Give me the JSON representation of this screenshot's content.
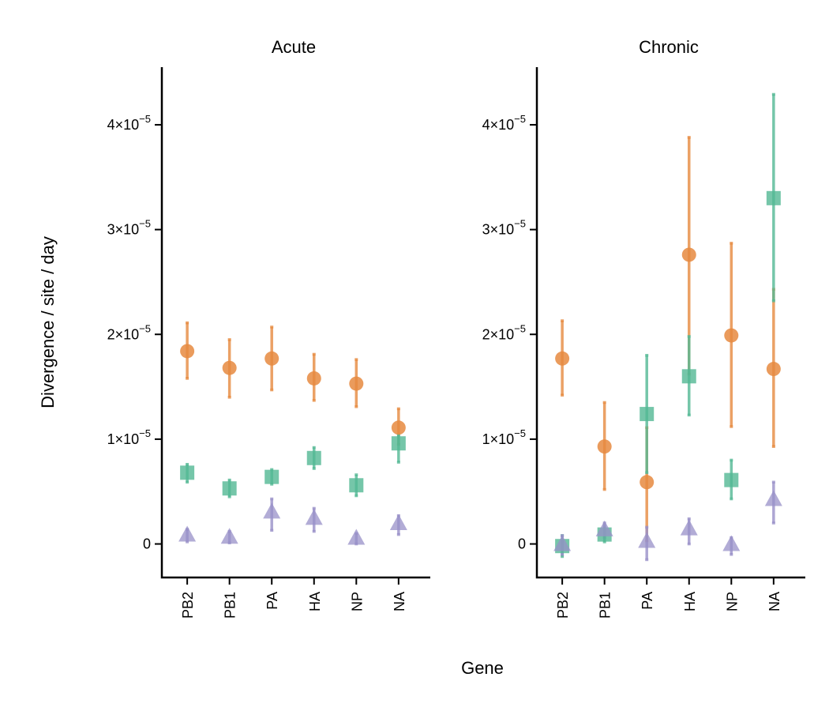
{
  "chart_data": {
    "type": "scatter",
    "xlabel": "Gene",
    "ylabel": "Divergence / site / day",
    "categories": [
      "PB2",
      "PB1",
      "PA",
      "HA",
      "NP",
      "NA"
    ],
    "y_ticks": [
      {
        "value": 0,
        "mant": "0",
        "exp": ""
      },
      {
        "value": 1e-05,
        "mant": "1×10",
        "exp": "−5"
      },
      {
        "value": 2e-05,
        "mant": "2×10",
        "exp": "−5"
      },
      {
        "value": 3e-05,
        "mant": "3×10",
        "exp": "−5"
      },
      {
        "value": 4e-05,
        "mant": "4×10",
        "exp": "−5"
      }
    ],
    "ylim": [
      -3.2e-06,
      4.55e-05
    ],
    "series_styles": [
      {
        "marker": "circle",
        "color": "#e6893f"
      },
      {
        "marker": "square",
        "color": "#52b894"
      },
      {
        "marker": "triangle",
        "color": "#9890c8"
      }
    ],
    "panels": [
      {
        "title": "Acute",
        "series": [
          {
            "marker": "circle",
            "color": "#e6893f",
            "y": [
              1.84e-05,
              1.68e-05,
              1.77e-05,
              1.58e-05,
              1.53e-05,
              1.11e-05
            ],
            "lo": [
              1.58e-05,
              1.4e-05,
              1.47e-05,
              1.37e-05,
              1.31e-05,
              9.5e-06
            ],
            "hi": [
              2.11e-05,
              1.95e-05,
              2.07e-05,
              1.81e-05,
              1.76e-05,
              1.29e-05
            ]
          },
          {
            "marker": "square",
            "color": "#52b894",
            "y": [
              6.8e-06,
              5.3e-06,
              6.4e-06,
              8.2e-06,
              5.6e-06,
              9.6e-06
            ],
            "lo": [
              5.9e-06,
              4.5e-06,
              5.7e-06,
              7.2e-06,
              4.6e-06,
              7.8e-06
            ],
            "hi": [
              7.6e-06,
              6.1e-06,
              7.1e-06,
              9.2e-06,
              6.6e-06,
              1.04e-05
            ]
          },
          {
            "marker": "triangle",
            "color": "#9890c8",
            "y": [
              8e-07,
              6e-07,
              3e-06,
              2.4e-06,
              5e-07,
              1.9e-06
            ],
            "lo": [
              2e-07,
              1e-07,
              1.3e-06,
              1.2e-06,
              0.0,
              9e-07
            ],
            "hi": [
              1.4e-06,
              1.2e-06,
              4.3e-06,
              3.4e-06,
              1e-06,
              2.7e-06
            ]
          }
        ]
      },
      {
        "title": "Chronic",
        "series": [
          {
            "marker": "circle",
            "color": "#e6893f",
            "y": [
              1.77e-05,
              9.3e-06,
              5.9e-06,
              2.76e-05,
              1.99e-05,
              1.67e-05
            ],
            "lo": [
              1.42e-05,
              5.2e-06,
              3e-07,
              1.62e-05,
              1.12e-05,
              9.3e-06
            ],
            "hi": [
              2.13e-05,
              1.35e-05,
              1.11e-05,
              3.88e-05,
              2.87e-05,
              2.43e-05
            ]
          },
          {
            "marker": "square",
            "color": "#52b894",
            "y": [
              -2e-07,
              9e-07,
              1.24e-05,
              1.6e-05,
              6.1e-06,
              3.3e-05
            ],
            "lo": [
              -1.2e-06,
              2e-07,
              6.8e-06,
              1.23e-05,
              4.3e-06,
              2.32e-05
            ],
            "hi": [
              8e-07,
              1.7e-06,
              1.8e-05,
              1.98e-05,
              8e-06,
              4.29e-05
            ]
          },
          {
            "marker": "triangle",
            "color": "#9890c8",
            "y": [
              -1e-07,
              1.3e-06,
              2e-07,
              1.4e-06,
              -1e-07,
              4.2e-06
            ],
            "lo": [
              -1e-06,
              6e-07,
              -1.5e-06,
              0.0,
              -1e-06,
              2e-06
            ],
            "hi": [
              8e-07,
              2e-06,
              1.6e-06,
              2.4e-06,
              6e-07,
              5.9e-06
            ]
          }
        ]
      }
    ]
  }
}
